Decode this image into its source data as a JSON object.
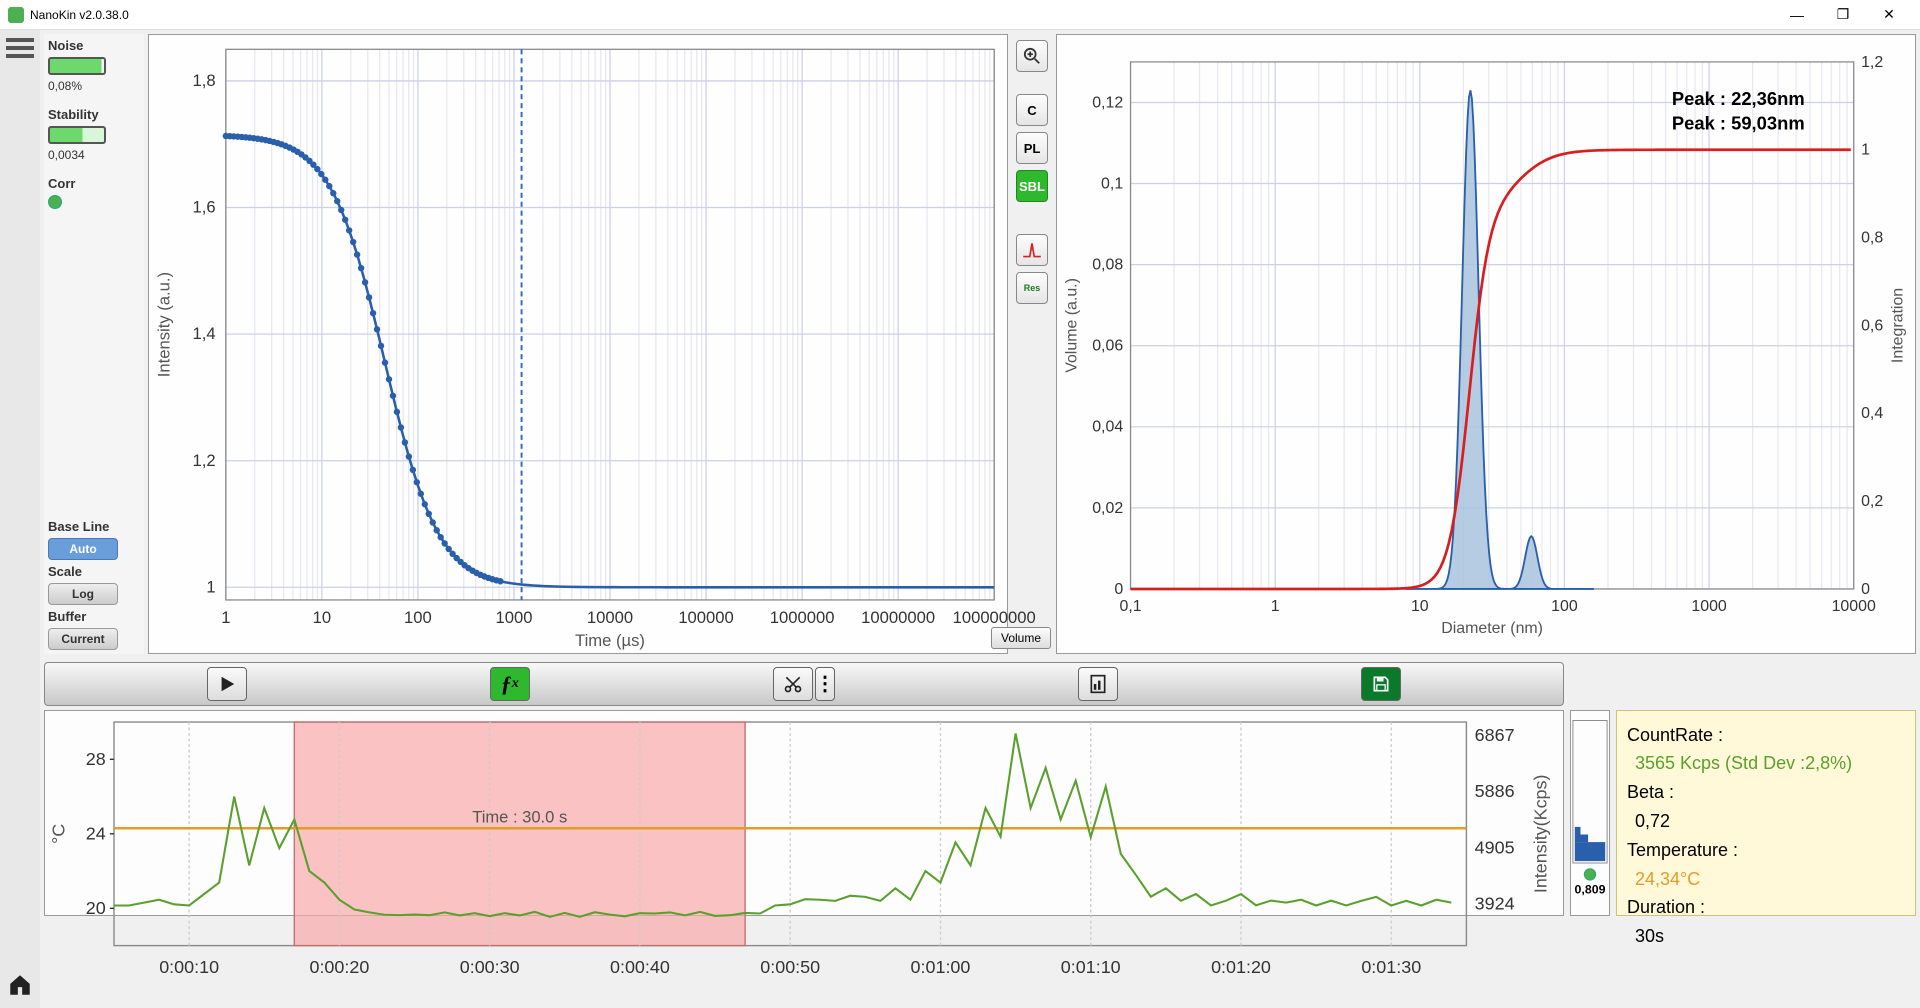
{
  "app": {
    "title": "NanoKin v2.0.38.0"
  },
  "window_controls": {
    "min": "—",
    "max": "❐",
    "close": "✕"
  },
  "sidebar": {
    "noise": {
      "label": "Noise",
      "value": "0,08%"
    },
    "stability": {
      "label": "Stability",
      "value": "0,0034"
    },
    "corr": {
      "label": "Corr"
    },
    "baseline": {
      "label": "Base Line",
      "btn": "Auto"
    },
    "scale": {
      "label": "Scale",
      "btn": "Log"
    },
    "buffer": {
      "label": "Buffer",
      "btn": "Current"
    }
  },
  "correlation_chart": {
    "type": "line-scatter-logx",
    "xlabel": "Time (µs)",
    "ylabel": "Intensity (a.u.)",
    "xticks": [
      "1",
      "10",
      "100",
      "1000",
      "10000",
      "100000",
      "1000000",
      "10000000",
      "100000000"
    ],
    "yticks": [
      "1",
      "1,2",
      "1,4",
      "1,6",
      "1,8"
    ],
    "ylim": [
      0.98,
      1.85
    ],
    "line_color": "#2a5fab",
    "vline_x": 1200,
    "vline_color": "#3366cc",
    "vline_dash": "4 3",
    "background": "#fdfdfe",
    "grid_color": "#cdd0e6"
  },
  "mid_buttons": {
    "zoom": "🔍",
    "c": "C",
    "pl": "PL",
    "sbl": "SBL",
    "peak": "peak",
    "res": "Res",
    "volume": "Volume"
  },
  "size_chart": {
    "type": "distribution-logx",
    "xlabel": "Diameter (nm)",
    "ylabel_left": "Volume (a.u.)",
    "ylabel_right": "Integration",
    "xticks": [
      "0,1",
      "1",
      "10",
      "100",
      "1000",
      "10000"
    ],
    "yticks_left": [
      "0",
      "0,02",
      "0,04",
      "0,06",
      "0,08",
      "0,1",
      "0,12"
    ],
    "yticks_right": [
      "0",
      "0,2",
      "0,4",
      "0,6",
      "0,8",
      "1",
      "1,2"
    ],
    "peak_labels": [
      "Peak : 22,36nm",
      "Peak : 59,03nm"
    ],
    "fill_color": "#a8c3de",
    "fill_stroke": "#2a5fab",
    "cumulative_color": "#d81f1f",
    "background": "#fdfdfe",
    "grid_color": "#cdd0e6"
  },
  "action_bar": {
    "play": "▶",
    "fx": "ƒx",
    "cut": "✂",
    "stats": "📊",
    "save": "💾"
  },
  "time_chart": {
    "type": "timeseries",
    "ylabel_left": "°C",
    "ylabel_right": "Intensity(Kcps)",
    "yticks_left": [
      "20",
      "24",
      "28"
    ],
    "yticks_right": [
      "3924",
      "4905",
      "5886",
      "6867"
    ],
    "xticks": [
      "0:00:10",
      "0:00:20",
      "0:00:30",
      "0:00:40",
      "0:00:50",
      "0:01:00",
      "0:01:10",
      "0:01:20",
      "0:01:30"
    ],
    "selection_label": "Time : 30.0 s",
    "selection_color": "#f8a8a8",
    "signal_color": "#5aa02c",
    "temp_color": "#e69a28",
    "background": "#fdfdfd"
  },
  "histo": {
    "value": "0,809"
  },
  "info": {
    "countrate_label": "CountRate :",
    "countrate_value": "3565 Kcps (Std Dev :2,8%)",
    "beta_label": "Beta :",
    "beta_value": "0,72",
    "temp_label": "Temperature :",
    "temp_value": "24,34°C",
    "duration_label": "Duration :",
    "duration_value": "30s"
  }
}
